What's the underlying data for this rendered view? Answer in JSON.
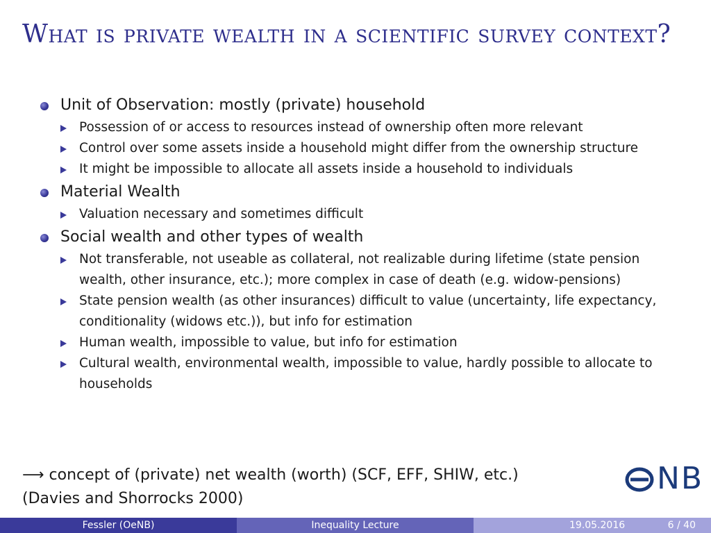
{
  "slide": {
    "title": "What is private wealth in a scientific survey context?",
    "sections": [
      {
        "heading": "Unit of Observation: mostly (private) household",
        "points": [
          "Possession of or access to resources instead of ownership often more relevant",
          "Control over some assets inside a household might differ from the ownership structure",
          "It might be impossible to allocate all assets inside a household to individuals"
        ]
      },
      {
        "heading": "Material Wealth",
        "points": [
          "Valuation necessary and sometimes difficult"
        ]
      },
      {
        "heading": "Social wealth and other types of wealth",
        "points": [
          "Not transferable, not useable as collateral, not realizable during lifetime (state pension wealth, other insurance, etc.); more complex in case of death (e.g. widow-pensions)",
          "State pension wealth (as other insurances) difficult to value (uncertainty, life expectancy, conditionality (widows etc.)), but info for estimation",
          "Human wealth, impossible to value, but info for estimation",
          "Cultural wealth, environmental wealth, impossible to value, hardly possible to allocate to households"
        ]
      }
    ],
    "conclusion_arrow": "⟶",
    "conclusion_line1": "concept of (private) net wealth (worth) (SCF, EFF, SHIW, etc.)",
    "conclusion_line2": "(Davies and Shorrocks 2000)"
  },
  "logo": {
    "text": "NB",
    "icon": "onb-o-icon",
    "color": "#1b3a7a"
  },
  "footer": {
    "author": "Fessler  (OeNB)",
    "lecture": "Inequality Lecture",
    "date": "19.05.2016",
    "page": "6 / 40"
  },
  "colors": {
    "title": "#2e2e8c",
    "bullet": "#3a3a9a",
    "footer_left": "#3a3a9a",
    "footer_mid": "#6464b8",
    "footer_right": "#a3a3dc"
  }
}
